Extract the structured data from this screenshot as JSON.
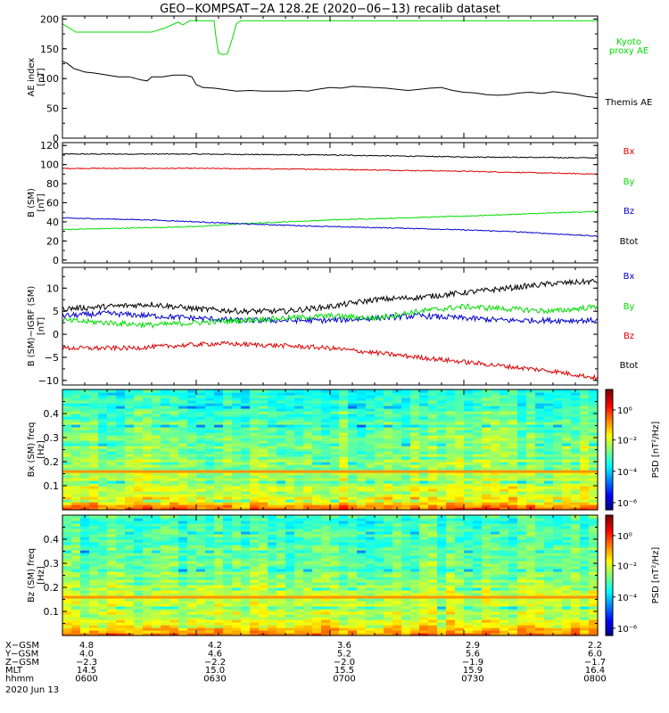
{
  "title": "GEO−KOMPSAT−2A 128.2E (2020−06−13) recalib dataset",
  "colors": {
    "black": "#000000",
    "red": "#dd0000",
    "green": "#00dd00",
    "blue": "#0000cc"
  },
  "chart_data": [
    {
      "type": "line",
      "ylabel": "AE index [nT]",
      "yticks": [
        "0",
        "50",
        "100",
        "150",
        "200"
      ],
      "ylim": [
        0,
        205
      ],
      "x": [
        "06:00",
        "06:30",
        "07:00",
        "07:30",
        "08:00"
      ],
      "legend": {
        "placement": "right",
        "entries": [
          "Kyoto proxy AE",
          "Themis AE"
        ]
      },
      "series": [
        {
          "name": "Kyoto proxy AE",
          "color": "#00dd00",
          "points": [
            [
              0,
              192
            ],
            [
              3,
              185
            ],
            [
              6,
              178
            ],
            [
              20,
              178
            ],
            [
              40,
              178
            ],
            [
              46,
              185
            ],
            [
              52,
              195
            ],
            [
              54,
              190
            ],
            [
              57,
              197
            ],
            [
              64,
              197
            ],
            [
              68,
              197
            ],
            [
              69,
              165
            ],
            [
              70,
              143
            ],
            [
              72,
              140
            ],
            [
              74,
              142
            ],
            [
              76,
              165
            ],
            [
              78,
              192
            ],
            [
              80,
              197
            ],
            [
              100,
              197
            ],
            [
              140,
              197
            ],
            [
              170,
              197
            ],
            [
              200,
              197
            ],
            [
              240,
              197
            ]
          ]
        },
        {
          "name": "Themis AE",
          "color": "#000000",
          "points": [
            [
              0,
              129
            ],
            [
              2,
              126
            ],
            [
              5,
              117
            ],
            [
              10,
              111
            ],
            [
              15,
              109
            ],
            [
              20,
              106
            ],
            [
              25,
              103
            ],
            [
              30,
              103
            ],
            [
              35,
              98
            ],
            [
              38,
              96
            ],
            [
              40,
              103
            ],
            [
              45,
              103
            ],
            [
              50,
              106
            ],
            [
              55,
              106
            ],
            [
              58,
              103
            ],
            [
              60,
              90
            ],
            [
              63,
              85
            ],
            [
              68,
              84
            ],
            [
              72,
              82
            ],
            [
              78,
              79
            ],
            [
              84,
              80
            ],
            [
              90,
              79
            ],
            [
              96,
              79
            ],
            [
              100,
              79
            ],
            [
              106,
              80
            ],
            [
              110,
              79
            ],
            [
              116,
              83
            ],
            [
              120,
              85
            ],
            [
              125,
              84
            ],
            [
              130,
              87
            ],
            [
              135,
              86
            ],
            [
              140,
              85
            ],
            [
              145,
              84
            ],
            [
              150,
              82
            ],
            [
              155,
              80
            ],
            [
              160,
              82
            ],
            [
              165,
              84
            ],
            [
              170,
              85
            ],
            [
              175,
              80
            ],
            [
              180,
              77
            ],
            [
              185,
              76
            ],
            [
              190,
              73
            ],
            [
              195,
              72
            ],
            [
              200,
              73
            ],
            [
              205,
              76
            ],
            [
              210,
              77
            ],
            [
              215,
              75
            ],
            [
              220,
              78
            ],
            [
              225,
              76
            ],
            [
              230,
              74
            ],
            [
              235,
              70
            ],
            [
              240,
              68
            ]
          ]
        }
      ]
    },
    {
      "type": "line",
      "ylabel": "B (SM) [nT]",
      "yticks": [
        "0",
        "20",
        "40",
        "60",
        "80",
        "100",
        "120"
      ],
      "ylim": [
        -3,
        123
      ],
      "x": [
        "06:00",
        "06:30",
        "07:00",
        "07:30",
        "08:00"
      ],
      "legend": {
        "placement": "right",
        "entries": [
          "Bx",
          "By",
          "Bz",
          "Btot"
        ]
      },
      "series": [
        {
          "name": "Btot",
          "color": "#000000",
          "noise": 0.5,
          "points": [
            [
              0,
              111
            ],
            [
              60,
              111
            ],
            [
              120,
              110
            ],
            [
              180,
              108
            ],
            [
              240,
              107
            ]
          ]
        },
        {
          "name": "Bx",
          "color": "#dd0000",
          "noise": 0.5,
          "points": [
            [
              0,
              96
            ],
            [
              60,
              96
            ],
            [
              120,
              95
            ],
            [
              180,
              93
            ],
            [
              240,
              90
            ]
          ]
        },
        {
          "name": "By",
          "color": "#00dd00",
          "noise": 0.5,
          "points": [
            [
              0,
              32
            ],
            [
              60,
              35
            ],
            [
              80,
              38
            ],
            [
              120,
              42
            ],
            [
              180,
              46
            ],
            [
              240,
              51
            ]
          ]
        },
        {
          "name": "Bz",
          "color": "#0000cc",
          "noise": 0.5,
          "points": [
            [
              0,
              44
            ],
            [
              40,
              42
            ],
            [
              80,
              38
            ],
            [
              120,
              35
            ],
            [
              160,
              33
            ],
            [
              200,
              30
            ],
            [
              240,
              25
            ]
          ]
        }
      ]
    },
    {
      "type": "line",
      "ylabel": "B (SM)−IGRF (SM) [nT]",
      "yticks": [
        "−10",
        "−5",
        "0",
        "5",
        "10"
      ],
      "ylim": [
        -11,
        14.5
      ],
      "x": [
        "06:00",
        "06:30",
        "07:00",
        "07:30",
        "08:00"
      ],
      "legend": {
        "placement": "right",
        "entries": [
          "Bx",
          "By",
          "Bz",
          "Btot"
        ]
      },
      "series": [
        {
          "name": "Btot",
          "color": "#000000",
          "noise": 0.6,
          "points": [
            [
              0,
              5.5
            ],
            [
              20,
              6
            ],
            [
              40,
              6.5
            ],
            [
              60,
              5.5
            ],
            [
              80,
              5
            ],
            [
              100,
              5
            ],
            [
              120,
              6
            ],
            [
              140,
              7.5
            ],
            [
              160,
              8
            ],
            [
              180,
              9
            ],
            [
              200,
              10
            ],
            [
              220,
              11
            ],
            [
              240,
              11.5
            ]
          ]
        },
        {
          "name": "Bx",
          "color": "#0000cc",
          "noise": 0.6,
          "points": [
            [
              0,
              4
            ],
            [
              20,
              4.5
            ],
            [
              40,
              4
            ],
            [
              60,
              3.5
            ],
            [
              80,
              3
            ],
            [
              100,
              3
            ],
            [
              120,
              3
            ],
            [
              140,
              3.5
            ],
            [
              160,
              4
            ],
            [
              180,
              3.5
            ],
            [
              200,
              3
            ],
            [
              240,
              3
            ]
          ]
        },
        {
          "name": "By",
          "color": "#00dd00",
          "noise": 0.6,
          "points": [
            [
              0,
              3
            ],
            [
              20,
              2.5
            ],
            [
              40,
              2
            ],
            [
              60,
              2.5
            ],
            [
              80,
              3
            ],
            [
              100,
              3.5
            ],
            [
              120,
              4
            ],
            [
              140,
              3.5
            ],
            [
              160,
              5
            ],
            [
              180,
              6
            ],
            [
              200,
              5.5
            ],
            [
              220,
              5
            ],
            [
              240,
              6
            ]
          ]
        },
        {
          "name": "Bz",
          "color": "#dd0000",
          "noise": 0.5,
          "points": [
            [
              0,
              -3
            ],
            [
              30,
              -3
            ],
            [
              50,
              -2.5
            ],
            [
              70,
              -2
            ],
            [
              100,
              -2.5
            ],
            [
              120,
              -3
            ],
            [
              140,
              -4
            ],
            [
              160,
              -5
            ],
            [
              180,
              -6
            ],
            [
              200,
              -7
            ],
            [
              220,
              -8
            ],
            [
              240,
              -9.5
            ]
          ]
        }
      ]
    },
    {
      "type": "heatmap",
      "ylabel": "Bx (SM) freq [Hz]",
      "yticks": [
        "0.1",
        "0.2",
        "0.3",
        "0.4"
      ],
      "ylim": [
        0,
        0.5
      ],
      "x": [
        "06:00",
        "06:30",
        "07:00",
        "07:30",
        "08:00"
      ],
      "colorbar": {
        "label": "PSD [nT²/Hz]",
        "ticks": [
          "10⁰",
          "10⁻²",
          "10⁻⁴",
          "10⁻⁶"
        ]
      }
    },
    {
      "type": "heatmap",
      "ylabel": "Bz (SM) freq [Hz]",
      "yticks": [
        "0.1",
        "0.2",
        "0.3",
        "0.4"
      ],
      "ylim": [
        0,
        0.5
      ],
      "x": [
        "06:00",
        "06:30",
        "07:00",
        "07:30",
        "08:00"
      ],
      "colorbar": {
        "label": "PSD [nT²/Hz]",
        "ticks": [
          "10⁰",
          "10⁻²",
          "10⁻⁴",
          "10⁻⁶"
        ]
      }
    }
  ],
  "ephemeris": {
    "rows": [
      {
        "label": "X−GSM",
        "values": [
          "4.8",
          "4.2",
          "3.6",
          "2.9",
          "2.2"
        ]
      },
      {
        "label": "Y−GSM",
        "values": [
          "4.0",
          "4.6",
          "5.2",
          "5.6",
          "6.0"
        ]
      },
      {
        "label": "Z−GSM",
        "values": [
          "−2.3",
          "−2.2",
          "−2.0",
          "−1.9",
          "−1.7"
        ]
      },
      {
        "label": "MLT",
        "values": [
          "14.5",
          "15.0",
          "15.5",
          "15.9",
          "16.4"
        ]
      },
      {
        "label": "hhmm",
        "values": [
          "0600",
          "0630",
          "0700",
          "0730",
          "0800"
        ]
      }
    ],
    "date": "2020 Jun 13"
  }
}
